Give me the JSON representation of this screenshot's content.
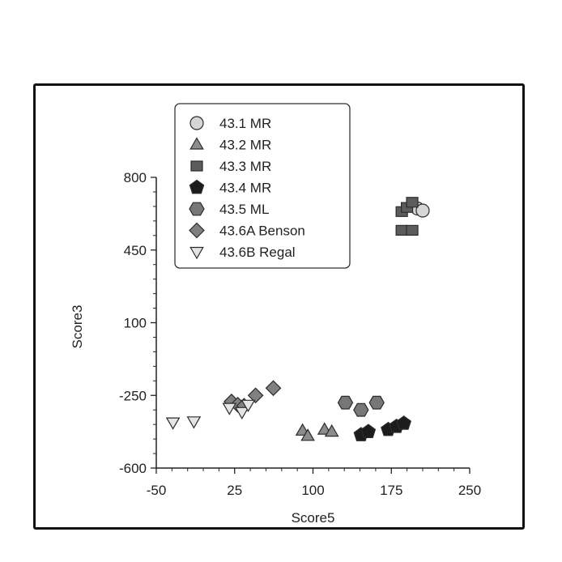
{
  "chart_data": {
    "type": "scatter",
    "title": "",
    "xlabel": "Score5",
    "ylabel": "Score3",
    "xlim": [
      -50,
      250
    ],
    "ylim": [
      -600,
      800
    ],
    "xticks": [
      -50,
      25,
      100,
      175,
      250
    ],
    "yticks": [
      800,
      450,
      100,
      -250,
      -600
    ],
    "grid": false,
    "legend_position": "top-left",
    "series": [
      {
        "name": "43.1 MR",
        "marker": "circle",
        "color": "#d6d6d6",
        "points": [
          [
            200,
            650
          ],
          [
            205,
            640
          ]
        ]
      },
      {
        "name": "43.2 MR",
        "marker": "triangle-up",
        "color": "#8c8c8c",
        "points": [
          [
            90,
            -420
          ],
          [
            95,
            -445
          ],
          [
            111,
            -415
          ],
          [
            118,
            -425
          ]
        ]
      },
      {
        "name": "43.3 MR",
        "marker": "square",
        "color": "#5c5c5c",
        "points": [
          [
            185,
            635
          ],
          [
            190,
            655
          ],
          [
            195,
            680
          ],
          [
            185,
            545
          ],
          [
            195,
            545
          ]
        ]
      },
      {
        "name": "43.4 MR",
        "marker": "pentagon",
        "color": "#1c1c1c",
        "points": [
          [
            146,
            -440
          ],
          [
            153,
            -425
          ],
          [
            172,
            -415
          ],
          [
            180,
            -400
          ],
          [
            187,
            -385
          ]
        ]
      },
      {
        "name": "43.5 ML",
        "marker": "hexagon",
        "color": "#777777",
        "points": [
          [
            131,
            -285
          ],
          [
            146,
            -320
          ],
          [
            161,
            -285
          ]
        ]
      },
      {
        "name": "43.6A Benson",
        "marker": "diamond",
        "color": "#808080",
        "points": [
          [
            22,
            -280
          ],
          [
            28,
            -295
          ],
          [
            34,
            -300
          ],
          [
            45,
            -250
          ],
          [
            62,
            -215
          ]
        ]
      },
      {
        "name": "43.6B Regal",
        "marker": "triangle-down",
        "color": "#e4e4e4",
        "points": [
          [
            -34,
            -380
          ],
          [
            -14,
            -375
          ],
          [
            20,
            -310
          ],
          [
            32,
            -330
          ],
          [
            38,
            -295
          ]
        ]
      }
    ]
  }
}
